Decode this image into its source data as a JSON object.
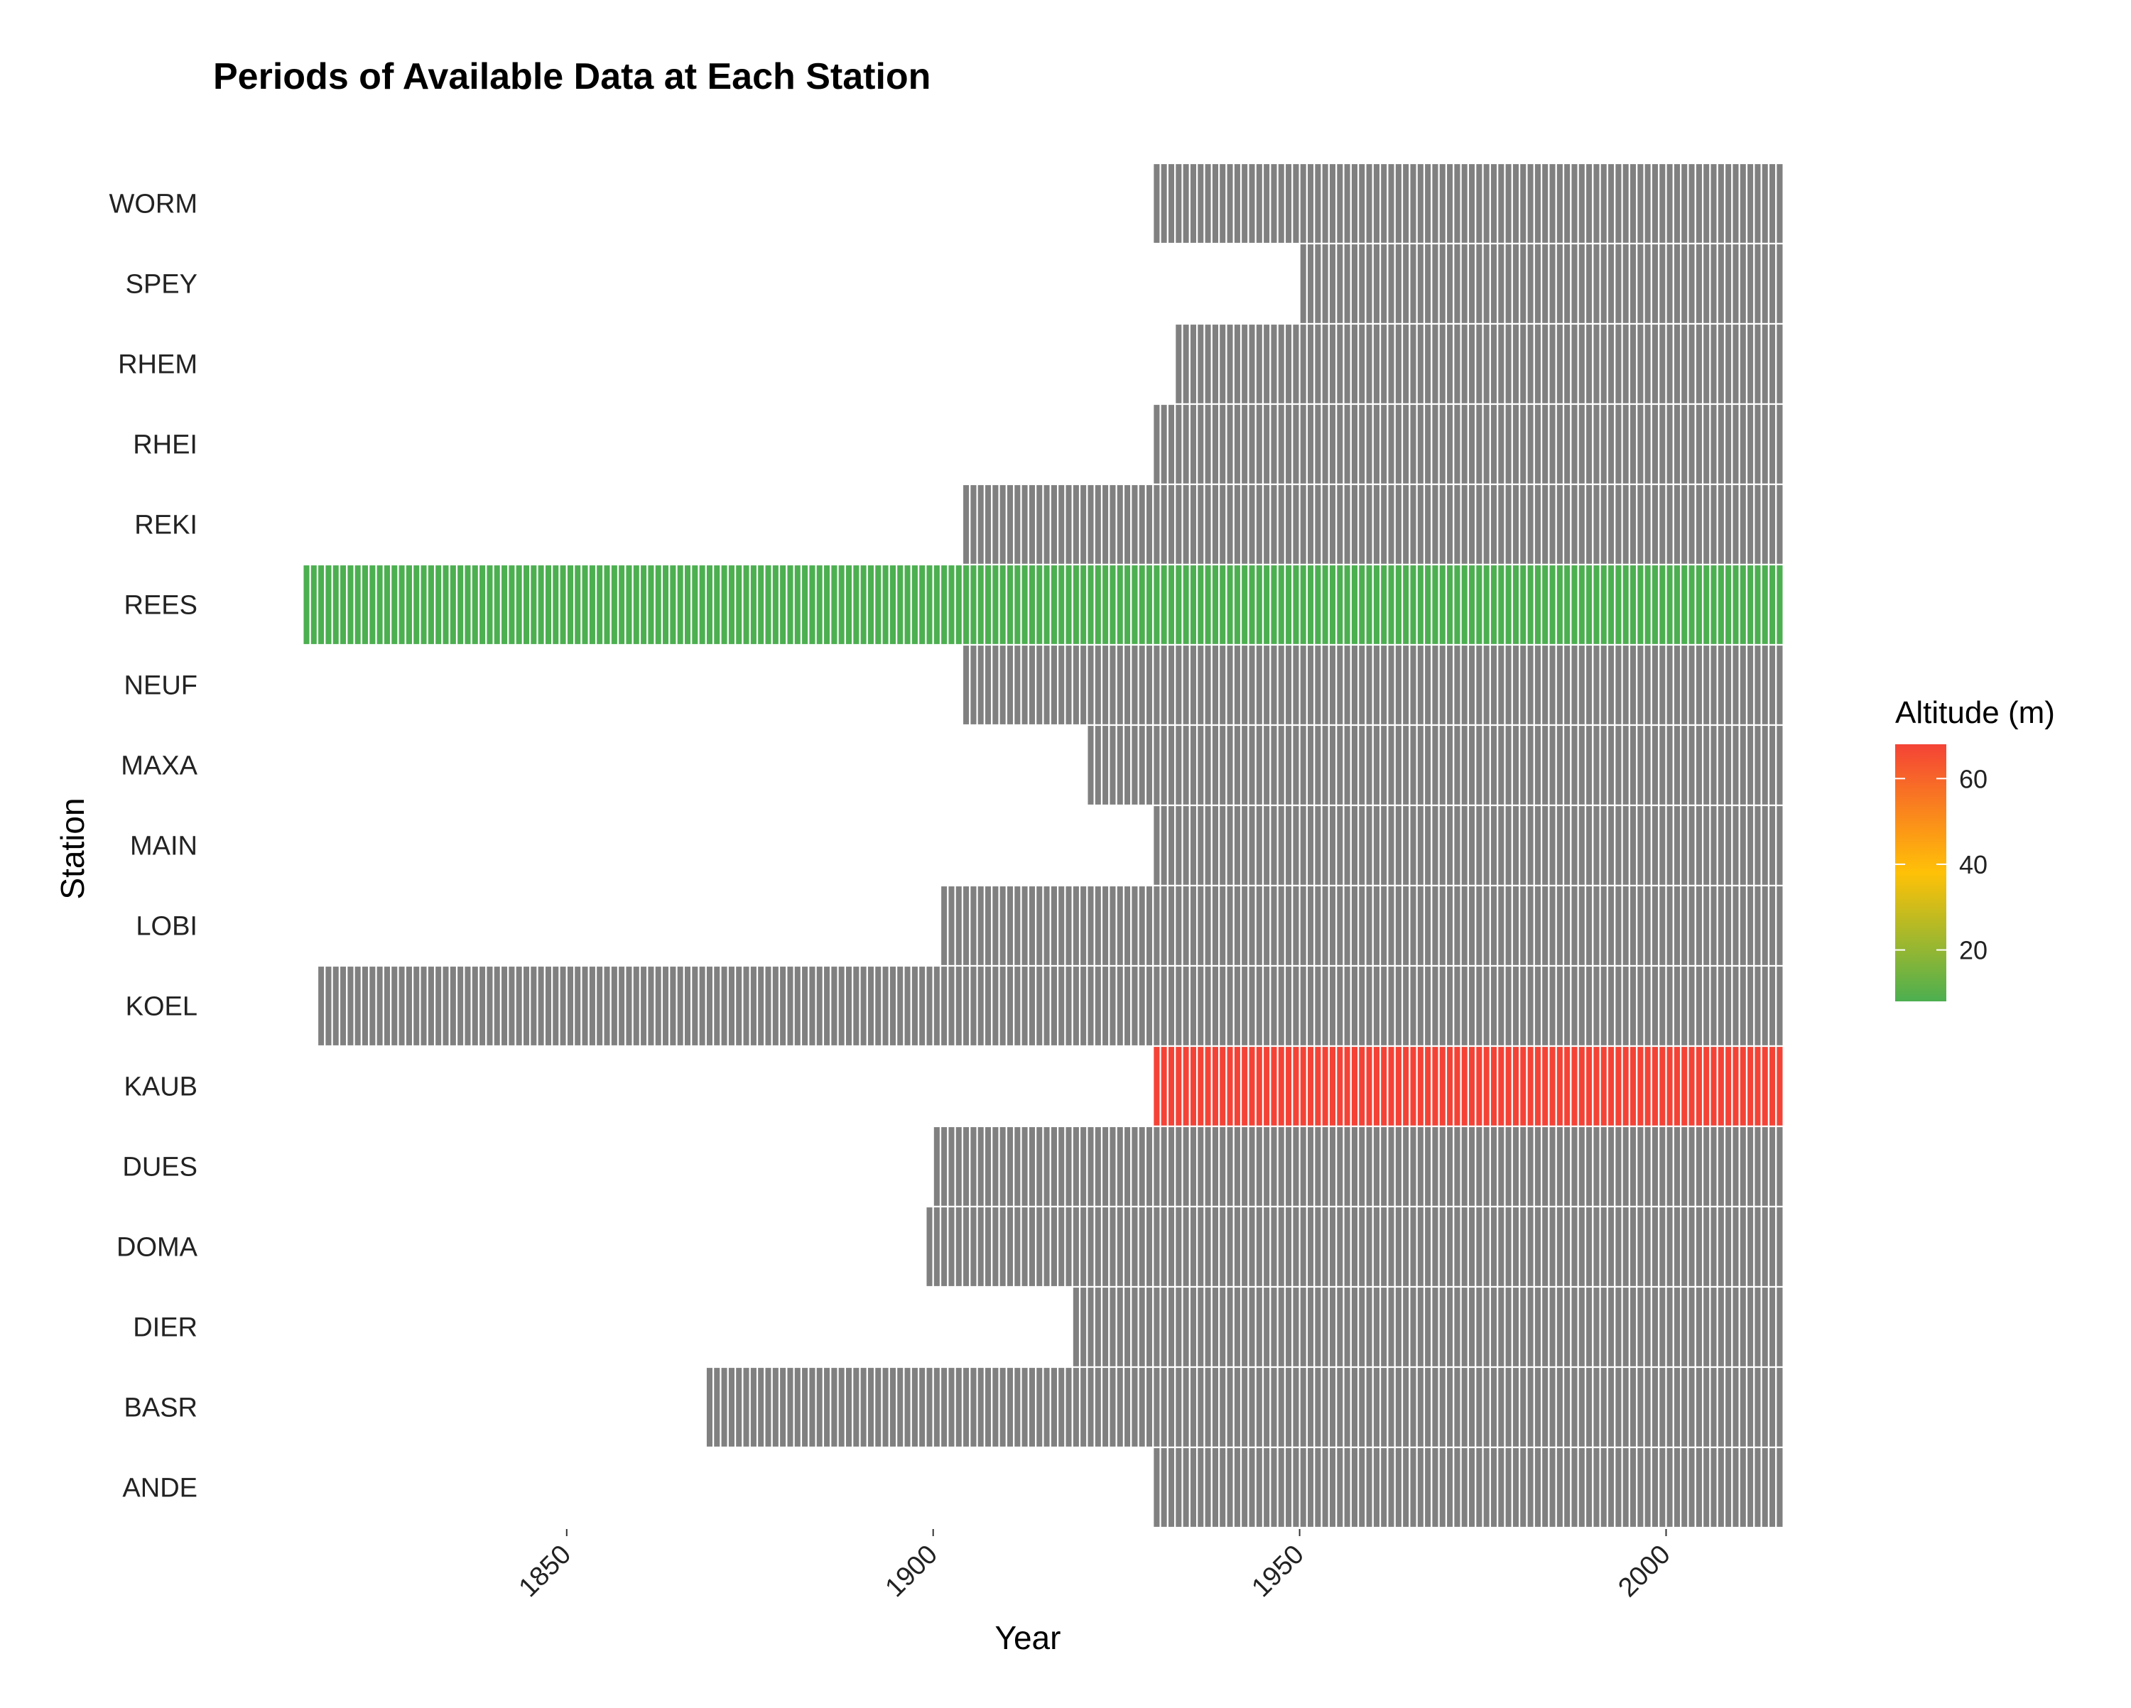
{
  "chart_data": {
    "type": "heatmap",
    "title": "Periods of Available Data at Each Station",
    "xlabel": "Year",
    "ylabel": "Station",
    "xlim": [
      1811,
      2016
    ],
    "x_ticks": [
      1850,
      1900,
      1950,
      2000
    ],
    "stations": [
      "WORM",
      "SPEY",
      "RHEM",
      "RHEI",
      "REKI",
      "REES",
      "NEUF",
      "MAXA",
      "MAIN",
      "LOBI",
      "KOEL",
      "KAUB",
      "DUES",
      "DOMA",
      "DIER",
      "BASR",
      "ANDE"
    ],
    "series": [
      {
        "station": "WORM",
        "start": 1930,
        "end": 2016,
        "color": "#808080"
      },
      {
        "station": "SPEY",
        "start": 1950,
        "end": 2016,
        "color": "#808080"
      },
      {
        "station": "RHEM",
        "start": 1933,
        "end": 2016,
        "color": "#808080"
      },
      {
        "station": "RHEI",
        "start": 1930,
        "end": 2016,
        "color": "#808080"
      },
      {
        "station": "REKI",
        "start": 1904,
        "end": 2016,
        "color": "#808080"
      },
      {
        "station": "REES",
        "start": 1814,
        "end": 2016,
        "color": "#4CAF50"
      },
      {
        "station": "NEUF",
        "start": 1904,
        "end": 2016,
        "color": "#808080"
      },
      {
        "station": "MAXA",
        "start": 1921,
        "end": 2016,
        "color": "#808080"
      },
      {
        "station": "MAIN",
        "start": 1930,
        "end": 2016,
        "color": "#808080"
      },
      {
        "station": "LOBI",
        "start": 1901,
        "end": 2016,
        "color": "#808080"
      },
      {
        "station": "KOEL",
        "start": 1816,
        "end": 2016,
        "color": "#808080"
      },
      {
        "station": "KAUB",
        "start": 1930,
        "end": 2016,
        "color": "#F44336"
      },
      {
        "station": "DUES",
        "start": 1900,
        "end": 2016,
        "color": "#808080"
      },
      {
        "station": "DOMA",
        "start": 1899,
        "end": 2016,
        "color": "#808080"
      },
      {
        "station": "DIER",
        "start": 1919,
        "end": 2016,
        "color": "#808080"
      },
      {
        "station": "BASR",
        "start": 1869,
        "end": 2016,
        "color": "#808080"
      },
      {
        "station": "ANDE",
        "start": 1930,
        "end": 2016,
        "color": "#808080"
      }
    ],
    "legend": {
      "title": "Altitude (m)",
      "range": [
        8,
        68
      ],
      "ticks": [
        20,
        40,
        60
      ],
      "colors": [
        "#4CAF50",
        "#FFC107",
        "#F44336"
      ],
      "position": "right"
    },
    "grid": false
  }
}
